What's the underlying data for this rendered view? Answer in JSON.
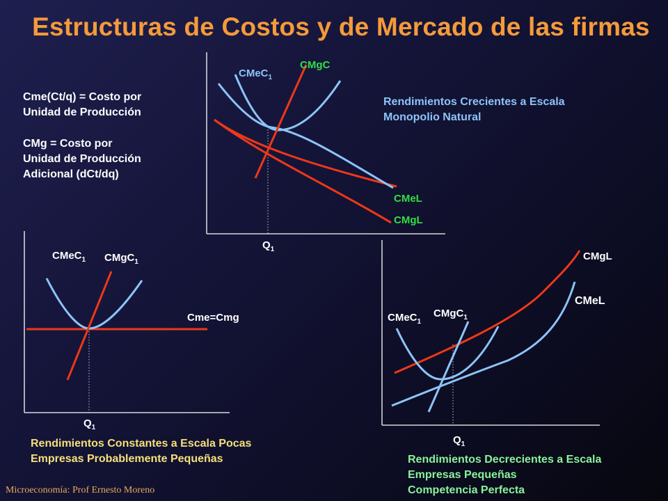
{
  "title": "Estructuras de Costos y de Mercado de las firmas",
  "definitions": {
    "cme_line1": "Cme(Ct/q) = Costo por",
    "cme_line2": "Unidad de Producción",
    "cmg_line1": "CMg = Costo por",
    "cmg_line2": "Unidad de Producción",
    "cmg_line3": "Adicional (dCt/dq)"
  },
  "panel_top": {
    "label_cmec": "CMeC",
    "label_cmec_sub": "1",
    "label_cmgc": "CMgC",
    "label_cmel": "CMeL",
    "label_cmgl": "CMgL",
    "label_q": "Q",
    "label_q_sub": "1",
    "note_line1": "Rendimientos Crecientes a Escala",
    "note_line2": "Monopolio Natural"
  },
  "panel_left": {
    "label_cmec": "CMeC",
    "label_cmec_sub": "1",
    "label_cmgc": "CMgC",
    "label_cmgc_sub": "1",
    "label_flat": "Cme=Cmg",
    "label_q": "Q",
    "label_q_sub": "1",
    "note_line1": "Rendimientos Constantes a Escala Pocas",
    "note_line2": "Empresas Probablemente Pequeñas"
  },
  "panel_right": {
    "label_cmgl": "CMgL",
    "label_cmel": "CMeL",
    "label_cmec": "CMeC",
    "label_cmec_sub": "1",
    "label_cmgc": "CMgC",
    "label_cmgc_sub": "1",
    "label_q": "Q",
    "label_q_sub": "1",
    "note_line1": "Rendimientos Decrecientes a Escala",
    "note_line2": "Empresas Pequeñas",
    "note_line3": "Competencia Perfecta"
  },
  "footer": "Microeconomía: Prof Ernesto Moreno",
  "colors": {
    "title": "#f59a3a",
    "red_curve": "#ee3818",
    "blue_curve": "#8cc4f8",
    "green_label": "#33dd44",
    "blue_label": "#8cc4f8",
    "yellow_note": "#f4e07a",
    "green_note": "#8af49a"
  }
}
